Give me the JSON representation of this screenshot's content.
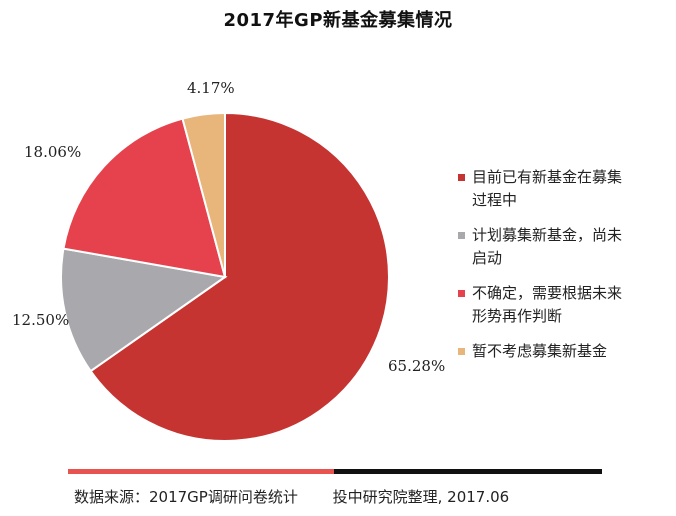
{
  "title": "2017年GP新基金募集情况",
  "chart_data": {
    "type": "pie",
    "title": "2017年GP新基金募集情况",
    "slices": [
      {
        "label": "目前已有新基金在募集过程中",
        "value": 65.28,
        "display": "65.28%",
        "color": "#c53431"
      },
      {
        "label": "计划募集新基金，尚未启动",
        "value": 12.5,
        "display": "12.50%",
        "color": "#a9a9ad"
      },
      {
        "label": "不确定，需要根据未来形势再作判断",
        "value": 18.06,
        "display": "18.06%",
        "color": "#e6424d"
      },
      {
        "label": "暂不考虑募集新基金",
        "value": 4.17,
        "display": "4.17%",
        "color": "#e8b57a"
      }
    ],
    "legend_position": "right"
  },
  "legend": [
    {
      "line1": "目前已有新基金在募集",
      "line2": "过程中",
      "color": "#c53431"
    },
    {
      "line1": "计划募集新基金，尚未",
      "line2": "启动",
      "color": "#a9a9ad"
    },
    {
      "line1": "不确定，需要根据未来",
      "line2": "形势再作判断",
      "color": "#e6424d"
    },
    {
      "line1": "暂不考虑募集新基金",
      "line2": "",
      "color": "#e8b57a"
    }
  ],
  "footer": {
    "source": "数据来源：2017GP调研问卷统计",
    "credit": "投中研究院整理, 2017.06"
  }
}
